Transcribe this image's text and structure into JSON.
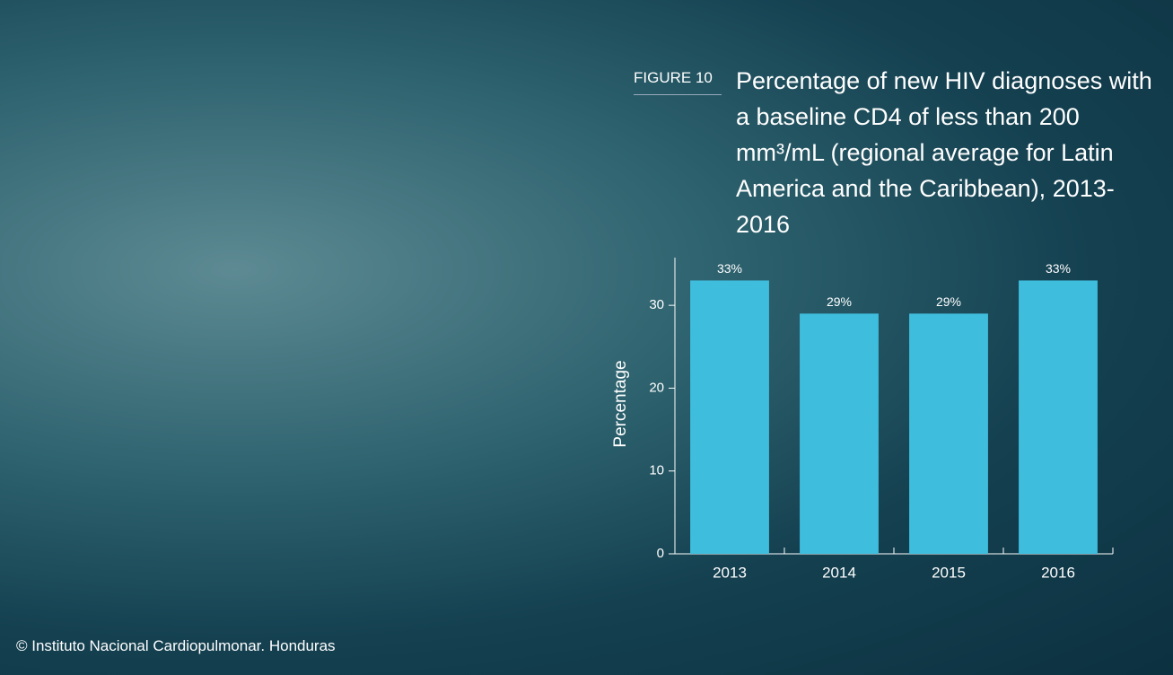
{
  "chart_data": {
    "type": "bar",
    "figure_label": "FIGURE 10",
    "title": "Percentage of new HIV diagnoses with a baseline CD4 of less than 200 mm³/mL (regional average for Latin America and the Caribbean), 2013-2016",
    "ylabel": "Percentage",
    "categories": [
      "2013",
      "2014",
      "2015",
      "2016"
    ],
    "values": [
      33,
      29,
      29,
      33
    ],
    "value_labels": [
      "33%",
      "29%",
      "29%",
      "33%"
    ],
    "color": "#3fbddd",
    "ylim": [
      0,
      35
    ],
    "yticks": [
      0,
      10,
      20,
      30
    ]
  },
  "credit": "© Instituto Nacional Cardiopulmonar. Honduras"
}
